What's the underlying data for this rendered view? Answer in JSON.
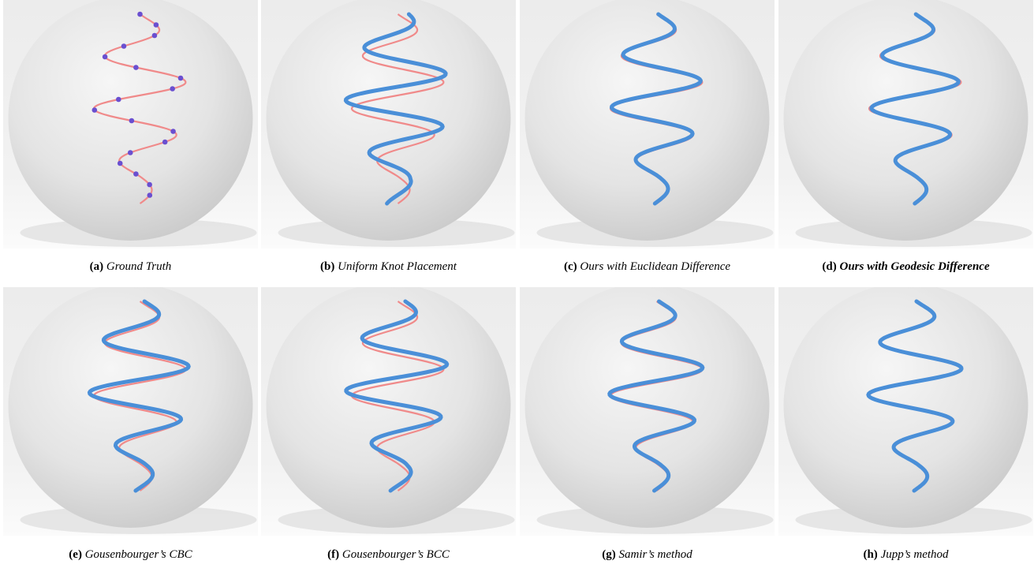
{
  "figures": [
    {
      "label": "(a)",
      "caption": "Ground Truth"
    },
    {
      "label": "(b)",
      "caption": "Uniform Knot Placement"
    },
    {
      "label": "(c)",
      "caption": "Ours with Euclidean Difference"
    },
    {
      "label": "(d)",
      "caption": "Ours with Geodesic Difference"
    },
    {
      "label": "(e)",
      "caption": "Gousenbourger’s CBC"
    },
    {
      "label": "(f)",
      "caption": "Gousenbourger’s BCC"
    },
    {
      "label": "(g)",
      "caption": "Samir’s method"
    },
    {
      "label": "(h)",
      "caption": "Jupp’s method"
    }
  ]
}
